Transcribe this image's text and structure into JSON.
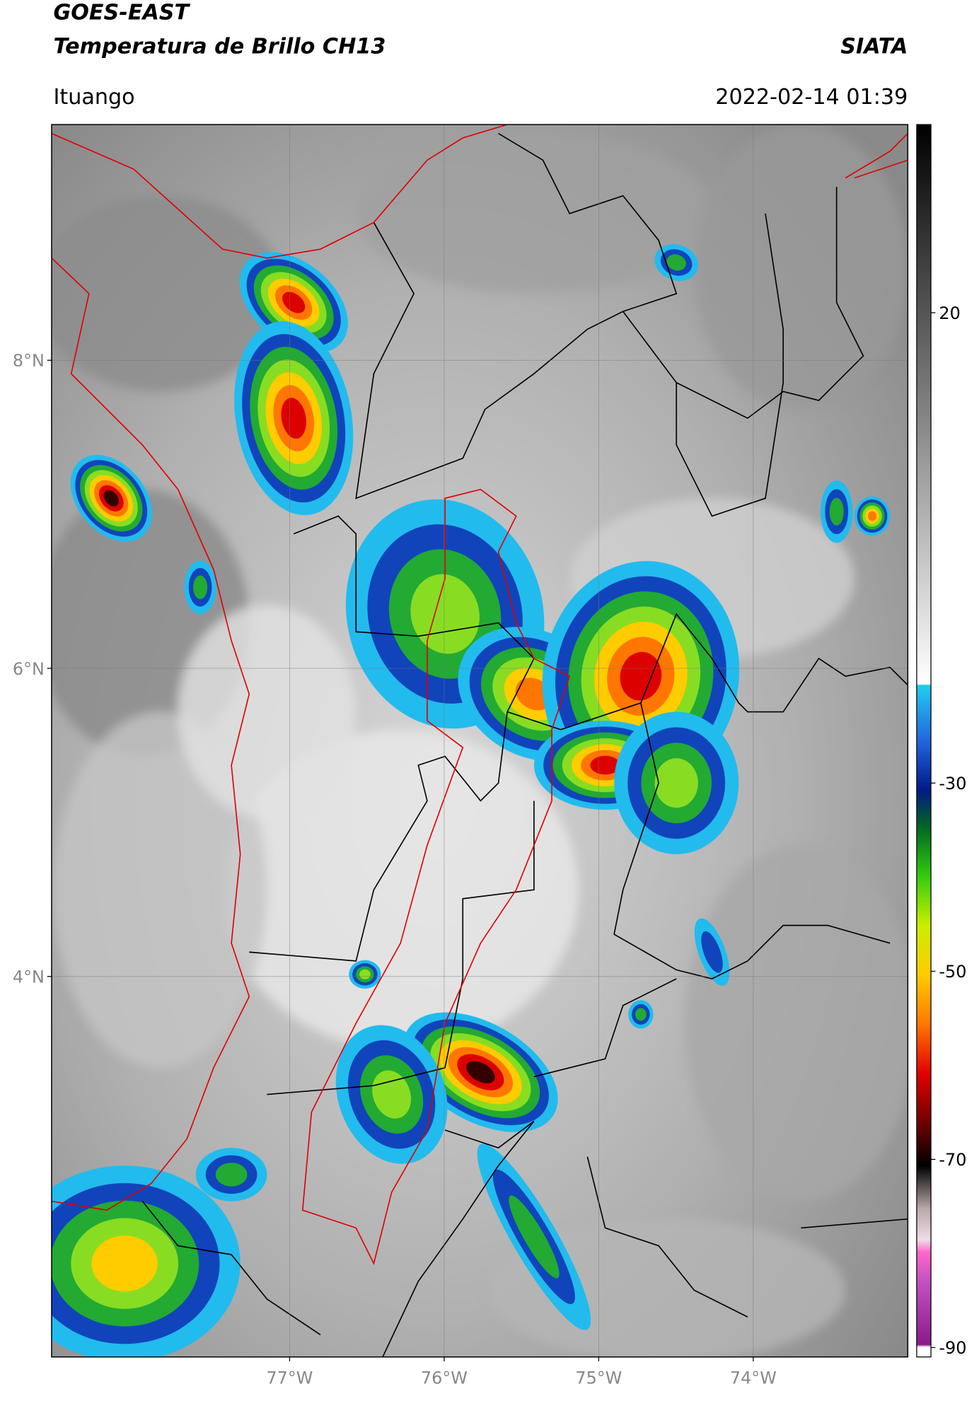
{
  "header": {
    "title_line1": "GOES-EAST",
    "title_line2": "Temperatura de Brillo CH13",
    "source": "SIATA",
    "location": "Ituango",
    "datetime": "2022-02-14 01:39"
  },
  "map": {
    "lat_lim": [
      1.53,
      9.53
    ],
    "lon_lim": [
      -78.54,
      -73.0
    ],
    "lat_ticks": [
      {
        "value": 8,
        "label": "8°N"
      },
      {
        "value": 6,
        "label": "6°N"
      },
      {
        "value": 4,
        "label": "4°N"
      }
    ],
    "lon_ticks": [
      {
        "value": -77,
        "label": "77°W"
      },
      {
        "value": -76,
        "label": "76°W"
      },
      {
        "value": -75,
        "label": "75°W"
      },
      {
        "value": -74,
        "label": "74°W"
      }
    ],
    "grid": true
  },
  "colorbar": {
    "lim": [
      -91,
      40
    ],
    "ticks": [
      20,
      -30,
      -50,
      -70,
      -90
    ]
  }
}
